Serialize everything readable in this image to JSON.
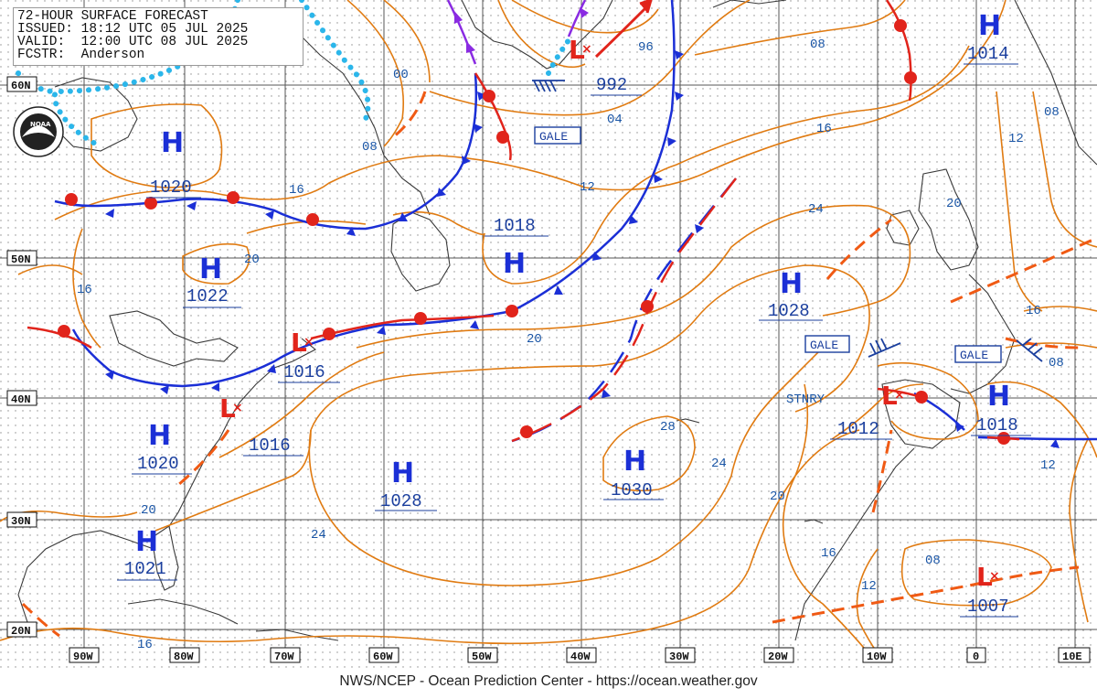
{
  "header": {
    "title": "72-HOUR SURFACE FORECAST",
    "issued": "ISSUED: 18:12 UTC 05 JUL 2025",
    "valid": "VALID:  12:00 UTC 08 JUL 2025",
    "forecaster": "FCSTR:  Anderson"
  },
  "credit": "NWS/NCEP - Ocean Prediction Center - https://ocean.weather.gov",
  "logo": {
    "icon": "noaa-logo",
    "text": "NOAA"
  },
  "latitude_labels": [
    "60N",
    "50N",
    "40N",
    "30N",
    "20N"
  ],
  "longitude_labels": [
    "90W",
    "80W",
    "70W",
    "60W",
    "50W",
    "40W",
    "30W",
    "20W",
    "10W",
    "0",
    "10E"
  ],
  "pressure_centers": [
    {
      "type": "H",
      "value": "1014"
    },
    {
      "type": "H",
      "value": "1020"
    },
    {
      "type": "H",
      "value": "1018"
    },
    {
      "type": "H",
      "value": "1022"
    },
    {
      "type": "H",
      "value": "1028"
    },
    {
      "type": "H",
      "value": "1020"
    },
    {
      "type": "H",
      "value": "1028"
    },
    {
      "type": "H",
      "value": "1030"
    },
    {
      "type": "H",
      "value": "1018"
    },
    {
      "type": "H",
      "value": "1021"
    },
    {
      "type": "L",
      "value": "992"
    },
    {
      "type": "L",
      "value": "1016"
    },
    {
      "type": "L",
      "value": "1016"
    },
    {
      "type": "L",
      "value": "1012"
    },
    {
      "type": "L",
      "value": "1007"
    }
  ],
  "isobar_labels": [
    "96",
    "08",
    "00",
    "04",
    "16",
    "08",
    "12",
    "16",
    "20",
    "16",
    "12",
    "24",
    "20",
    "20",
    "24",
    "28",
    "24",
    "20",
    "16",
    "12",
    "08",
    "20",
    "16",
    "08",
    "12",
    "16"
  ],
  "warnings": [
    "GALE",
    "GALE",
    "GALE"
  ],
  "stationary_label": "STNRY",
  "colors": {
    "high": "#1b2fd6",
    "low": "#e1241b",
    "isobar": "#e07b12",
    "cold_front": "#1b2fd6",
    "warm_front": "#e1241b",
    "occluded_front": "#8a2be2",
    "ice_edge": "#2bb6ea",
    "coast": "#3a3a3a",
    "grid": "#555555"
  }
}
